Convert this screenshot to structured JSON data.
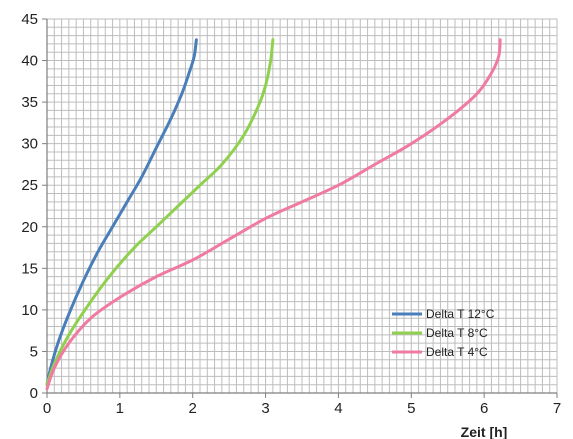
{
  "chart_data": {
    "type": "line",
    "title": "",
    "xlabel": "Zeit [h]",
    "ylabel": "",
    "xlim": [
      0,
      7
    ],
    "ylim": [
      0,
      45
    ],
    "x_ticks": [
      0,
      1,
      2,
      3,
      4,
      5,
      6,
      7
    ],
    "y_ticks": [
      0,
      5,
      10,
      15,
      20,
      25,
      30,
      35,
      40,
      45
    ],
    "x_minor_step": 0.1,
    "y_minor_step": 1,
    "grid": true,
    "legend_position": "lower-right",
    "series": [
      {
        "name": "Delta T 12°C",
        "color": "#4a7ebb",
        "points": [
          [
            0.0,
            1.0
          ],
          [
            0.05,
            3.0
          ],
          [
            0.15,
            6.0
          ],
          [
            0.3,
            9.5
          ],
          [
            0.5,
            13.5
          ],
          [
            0.7,
            17.0
          ],
          [
            0.9,
            20.0
          ],
          [
            1.1,
            23.0
          ],
          [
            1.3,
            26.0
          ],
          [
            1.5,
            29.5
          ],
          [
            1.7,
            33.0
          ],
          [
            1.85,
            36.0
          ],
          [
            1.95,
            38.5
          ],
          [
            2.02,
            40.5
          ],
          [
            2.05,
            42.5
          ]
        ]
      },
      {
        "name": "Delta T 8°C",
        "color": "#8fd14f",
        "points": [
          [
            0.0,
            1.0
          ],
          [
            0.1,
            3.5
          ],
          [
            0.3,
            7.0
          ],
          [
            0.6,
            11.0
          ],
          [
            0.9,
            14.5
          ],
          [
            1.2,
            17.5
          ],
          [
            1.5,
            20.0
          ],
          [
            1.8,
            22.5
          ],
          [
            2.1,
            25.0
          ],
          [
            2.4,
            27.5
          ],
          [
            2.7,
            31.0
          ],
          [
            2.9,
            34.5
          ],
          [
            3.0,
            37.0
          ],
          [
            3.07,
            40.0
          ],
          [
            3.1,
            42.5
          ]
        ]
      },
      {
        "name": "Delta T 4°C",
        "color": "#f07ba0",
        "points": [
          [
            0.0,
            0.5
          ],
          [
            0.1,
            3.0
          ],
          [
            0.3,
            6.0
          ],
          [
            0.6,
            9.0
          ],
          [
            1.0,
            11.5
          ],
          [
            1.5,
            14.0
          ],
          [
            2.0,
            16.0
          ],
          [
            2.5,
            18.5
          ],
          [
            3.0,
            21.0
          ],
          [
            3.5,
            23.0
          ],
          [
            4.0,
            25.0
          ],
          [
            4.5,
            27.5
          ],
          [
            5.0,
            30.0
          ],
          [
            5.5,
            33.0
          ],
          [
            5.9,
            36.0
          ],
          [
            6.1,
            38.5
          ],
          [
            6.2,
            40.5
          ],
          [
            6.22,
            42.5
          ]
        ]
      }
    ]
  }
}
